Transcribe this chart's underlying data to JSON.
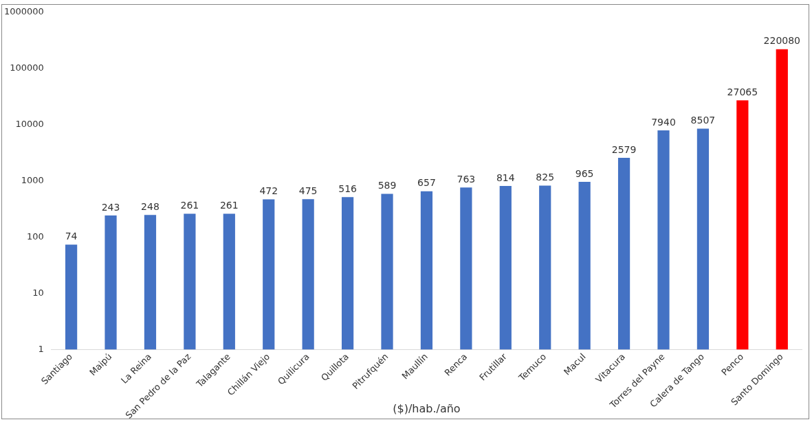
{
  "chart_data": {
    "type": "bar",
    "xlabel": "($)/hab./año",
    "categories": [
      "Santiago",
      "Maipú",
      "La Reina",
      "San Pedro de la Paz",
      "Talagante",
      "Chillán Viejo",
      "Quilicura",
      "Quillota",
      "Pitrufquén",
      "Maullín",
      "Renca",
      "Frutillar",
      "Temuco",
      "Macul",
      "Vitacura",
      "Torres del Payne",
      "Calera de Tango",
      "Penco",
      "Santo Domingo"
    ],
    "values": [
      74,
      243,
      248,
      261,
      261,
      472,
      475,
      516,
      589,
      657,
      763,
      814,
      825,
      965,
      2579,
      7940,
      8507,
      27065,
      220080
    ],
    "colors": [
      "#4472c4",
      "#4472c4",
      "#4472c4",
      "#4472c4",
      "#4472c4",
      "#4472c4",
      "#4472c4",
      "#4472c4",
      "#4472c4",
      "#4472c4",
      "#4472c4",
      "#4472c4",
      "#4472c4",
      "#4472c4",
      "#4472c4",
      "#4472c4",
      "#4472c4",
      "#ff0000",
      "#ff0000"
    ],
    "log": true,
    "ylim": [
      1,
      1000000
    ],
    "yticks": [
      1,
      10,
      100,
      1000,
      10000,
      100000,
      1000000
    ],
    "data_labels": true,
    "grid": false,
    "legend": false
  }
}
